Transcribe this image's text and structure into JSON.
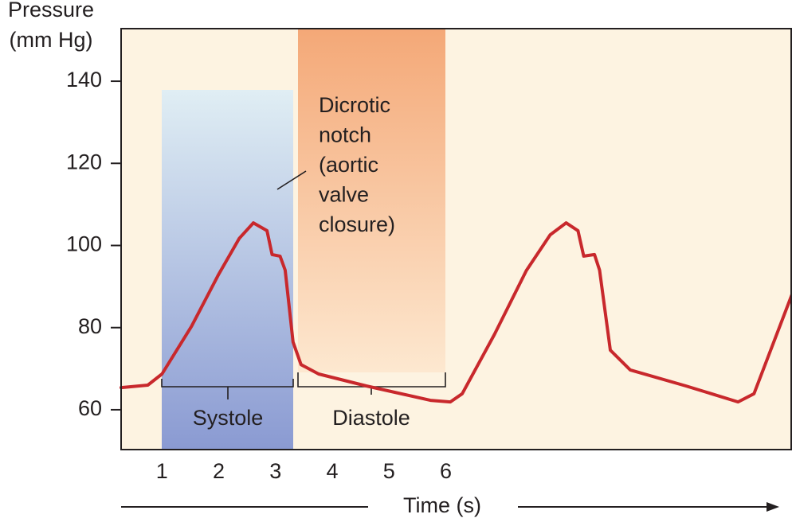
{
  "chart_data": {
    "type": "line",
    "y_label": [
      "Pressure",
      "(mm Hg)"
    ],
    "x_label": "Time (s)",
    "annotation": [
      "Dicrotic",
      "notch",
      "(aortic",
      "valve",
      "closure)"
    ],
    "phases": [
      "Systole",
      "Diastole"
    ],
    "x": [
      0.28,
      0.75,
      1.0,
      1.52,
      2.0,
      2.36,
      2.61,
      2.85,
      2.94,
      3.08,
      3.17,
      3.31,
      3.45,
      3.76,
      4.6,
      5.73,
      6.08,
      6.29,
      6.86,
      7.42,
      7.84,
      8.12,
      8.33,
      8.43,
      8.62,
      8.71,
      8.9,
      9.25,
      10.23,
      11.15,
      11.43,
      12.1
    ],
    "series": [
      {
        "color": "#c8282c",
        "values": [
          65.4,
          66,
          68.7,
          80.3,
          93,
          101.7,
          105.5,
          103.6,
          97.8,
          97.4,
          94,
          76.5,
          71,
          68.7,
          65.8,
          62.3,
          61.9,
          63.9,
          78.4,
          93.9,
          102.6,
          105.5,
          103.6,
          97.4,
          97.8,
          94,
          74.5,
          69.7,
          65.8,
          61.9,
          63.9,
          88.1
        ]
      }
    ],
    "xlim": [
      0.28,
      12.1
    ],
    "xticks": [
      1,
      2,
      3,
      4,
      5,
      6
    ],
    "ylim": [
      50.3,
      152.8
    ],
    "yticks": [
      60,
      80,
      100,
      120,
      140
    ],
    "background": "#fdf3e1"
  }
}
